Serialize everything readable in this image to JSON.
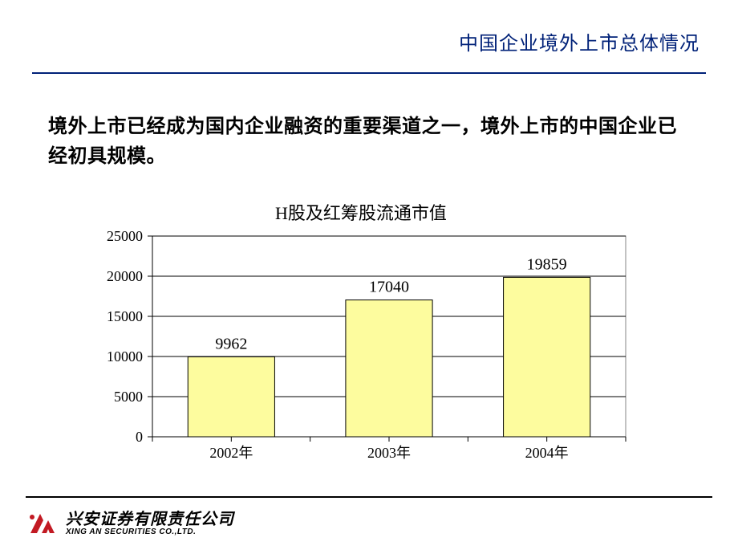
{
  "header": {
    "title": "中国企业境外上市总体情况",
    "title_color": "#002178",
    "rule_color": "#002178"
  },
  "body": {
    "text": "境外上市已经成为国内企业融资的重要渠道之一，境外上市的中国企业已经初具规模。",
    "fontsize": 24,
    "color": "#000000"
  },
  "chart": {
    "type": "bar",
    "title": "H股及红筹股流通市值",
    "title_fontsize": 22,
    "categories": [
      "2002年",
      "2003年",
      "2004年"
    ],
    "values": [
      9962,
      17040,
      19859
    ],
    "value_labels": [
      "9962",
      "17040",
      "19859"
    ],
    "bar_fill": "#fdfc9e",
    "bar_stroke": "#000000",
    "plot_fill": "#ffffff",
    "plot_border": "#858585",
    "axis_color": "#000000",
    "grid_color": "#000000",
    "tick_color": "#000000",
    "label_color": "#000000",
    "axis_fontsize": 18,
    "datalabel_fontsize": 20,
    "ylim": [
      0,
      25000
    ],
    "ytick_step": 5000,
    "yticks": [
      0,
      5000,
      10000,
      15000,
      20000,
      25000
    ],
    "bar_width_ratio": 0.55
  },
  "footer": {
    "company_cn": "兴安证券有限责任公司",
    "company_en": "XING AN SECURITIES CO.,LTD.",
    "logo_color": "#c21a23",
    "rule_color": "#000000"
  }
}
